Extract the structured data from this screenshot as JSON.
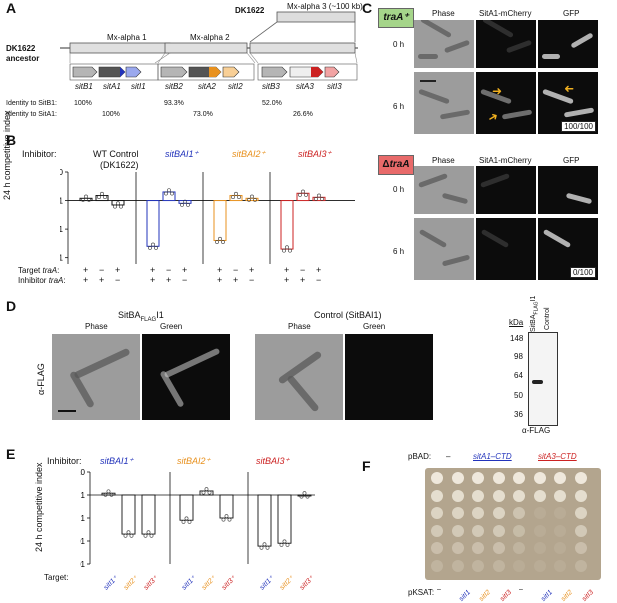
{
  "panels": {
    "a": "A",
    "b": "B",
    "c": "C",
    "d": "D",
    "e": "E",
    "f": "F"
  },
  "panelA": {
    "dk1622_label": "DK1622",
    "ancestor_label": "DK1622\nancestor",
    "mx_alpha1": "Mx-alpha 1",
    "mx_alpha2": "Mx-alpha 2",
    "mx_alpha3": "Mx-alpha 3 (~100 kb)",
    "genes": [
      "sitB1",
      "sitA1",
      "sitI1",
      "sitB2",
      "sitA2",
      "sitI2",
      "sitB3",
      "sitA3",
      "sitI3"
    ],
    "identity_b1_label": "Identity to SitB1:",
    "identity_a1_label": "Identity to SitA1:",
    "identity_b1": [
      "100%",
      "93.3%",
      "52.0%"
    ],
    "identity_a1": [
      "100%",
      "73.0%",
      "26.6%"
    ]
  },
  "panelB": {
    "inhibitor_label": "Inhibitor:",
    "groups": [
      "WT Control",
      "sitBAI1⁺",
      "sitBAI2⁺",
      "sitBAI3⁺"
    ],
    "group_sub": "(DK1622)",
    "ylabel": "24 h competitive index",
    "yticks": [
      "10",
      "1",
      "0.1",
      "0.01"
    ],
    "target_label": "Target traA:",
    "inhib_label": "Inhibitor traA:",
    "target_signs": [
      "+",
      "−",
      "+",
      "+",
      "−",
      "+",
      "+",
      "−",
      "+",
      "+",
      "−",
      "+"
    ],
    "inhib_signs": [
      "+",
      "+",
      "−",
      "+",
      "+",
      "−",
      "+",
      "+",
      "−",
      "+",
      "+",
      "−"
    ]
  },
  "chart_data": [
    {
      "type": "bar",
      "ylabel": "24 h competitive index",
      "yscale": "log",
      "ylim": [
        0.001,
        10
      ],
      "groups": [
        "WT Control (DK1622)",
        "sitBAI1⁺",
        "sitBAI2⁺",
        "sitBAI3⁺"
      ],
      "series": [
        {
          "values": [
            1.2,
            1.5,
            0.7
          ]
        },
        {
          "values": [
            0.025,
            2.0,
            0.8
          ]
        },
        {
          "values": [
            0.04,
            1.5,
            1.2
          ]
        },
        {
          "values": [
            0.02,
            1.8,
            1.3
          ]
        }
      ]
    },
    {
      "type": "bar",
      "ylabel": "24 h competitive index",
      "yscale": "log",
      "ylim": [
        0.001,
        10
      ],
      "groups": [
        "sitBAI1⁺",
        "sitBAI2⁺",
        "sitBAI3⁺"
      ],
      "categories": [
        "sitI1⁺",
        "sitI2⁺",
        "sitI3⁺"
      ],
      "series": [
        {
          "values": [
            1.2,
            0.02,
            0.02
          ]
        },
        {
          "values": [
            0.08,
            1.5,
            0.1
          ]
        },
        {
          "values": [
            0.006,
            0.008,
            1.0
          ]
        }
      ]
    }
  ],
  "panelC": {
    "trA_pos": "traA⁺",
    "trA_neg": "ΔtraA",
    "cols": [
      "Phase",
      "SitA1-mCherry",
      "GFP"
    ],
    "rows": [
      "0 h",
      "6 h"
    ],
    "count_pos": "100/100",
    "count_neg": "0/100"
  },
  "panelD": {
    "title_left": "SitBA",
    "title_left_sub": "FLAG",
    "title_left_end": "I1",
    "title_right": "Control (SitBAI1)",
    "cols": [
      "Phase",
      "Green"
    ],
    "ylabel": "α-FLAG",
    "kda": "kDa",
    "markers": [
      "148",
      "98",
      "64",
      "50",
      "36"
    ],
    "lanes": [
      "SitBA",
      "FLAG",
      "I1",
      "Control"
    ],
    "blot_label": "α-FLAG"
  },
  "panelE": {
    "inhibitor_label": "Inhibitor:",
    "groups": [
      "sitBAI1⁺",
      "sitBAI2⁺",
      "sitBAI3⁺"
    ],
    "ylabel": "24 h competitive index",
    "yticks": [
      "10",
      "1",
      "0.1",
      "0.01",
      "<0.001"
    ],
    "target_label": "Target:",
    "targets": [
      "sitI1⁺",
      "sitI2⁺",
      "sitI3⁺"
    ]
  },
  "panelF": {
    "pbad_label": "pBAD:",
    "dash": "–",
    "sitA1_ctd": "sitA1–CTD",
    "sitA3_ctd": "sitA3–CTD",
    "pksat_label": "pKSAT:",
    "pksat": [
      "–",
      "sitI1",
      "sitI2",
      "sitI3",
      "–",
      "sitI1",
      "sitI2",
      "sitI3"
    ]
  },
  "colors": {
    "blue": "#2233bb",
    "orange": "#e8911e",
    "red": "#cc2222",
    "green_box": "#a5d58a",
    "red_box": "#e86a6a"
  }
}
